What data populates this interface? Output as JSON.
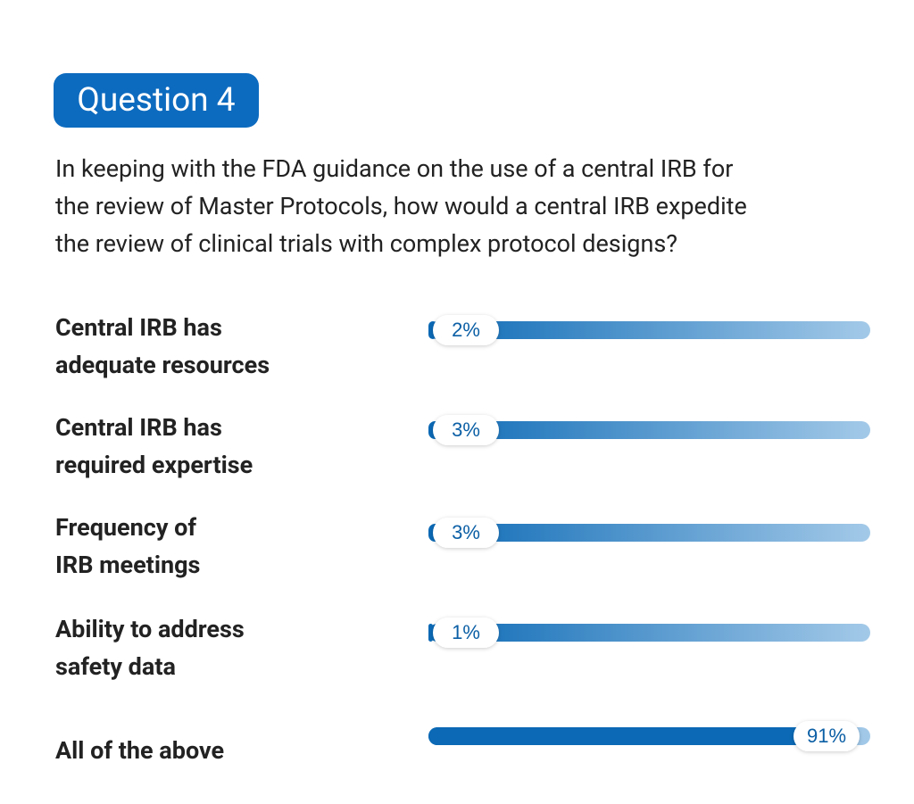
{
  "chart_data": {
    "type": "bar",
    "title": "Question 4",
    "subtitle": "In keeping with the FDA guidance on the use of a central IRB for\nthe review of Master Protocols, how would a central IRB expedite\nthe review of clinical trials with complex protocol designs?",
    "categories": [
      "Central IRB has\nadequate resources",
      "Central IRB has\nrequired expertise",
      "Frequency of\nIRB meetings",
      "Ability to address\nsafety data",
      "All of the above"
    ],
    "values": [
      2,
      3,
      3,
      1,
      91
    ],
    "value_labels": [
      "2%",
      "3%",
      "3%",
      "1%",
      "91%"
    ],
    "color": "#0b69b5",
    "xlim": [
      0,
      100
    ]
  }
}
